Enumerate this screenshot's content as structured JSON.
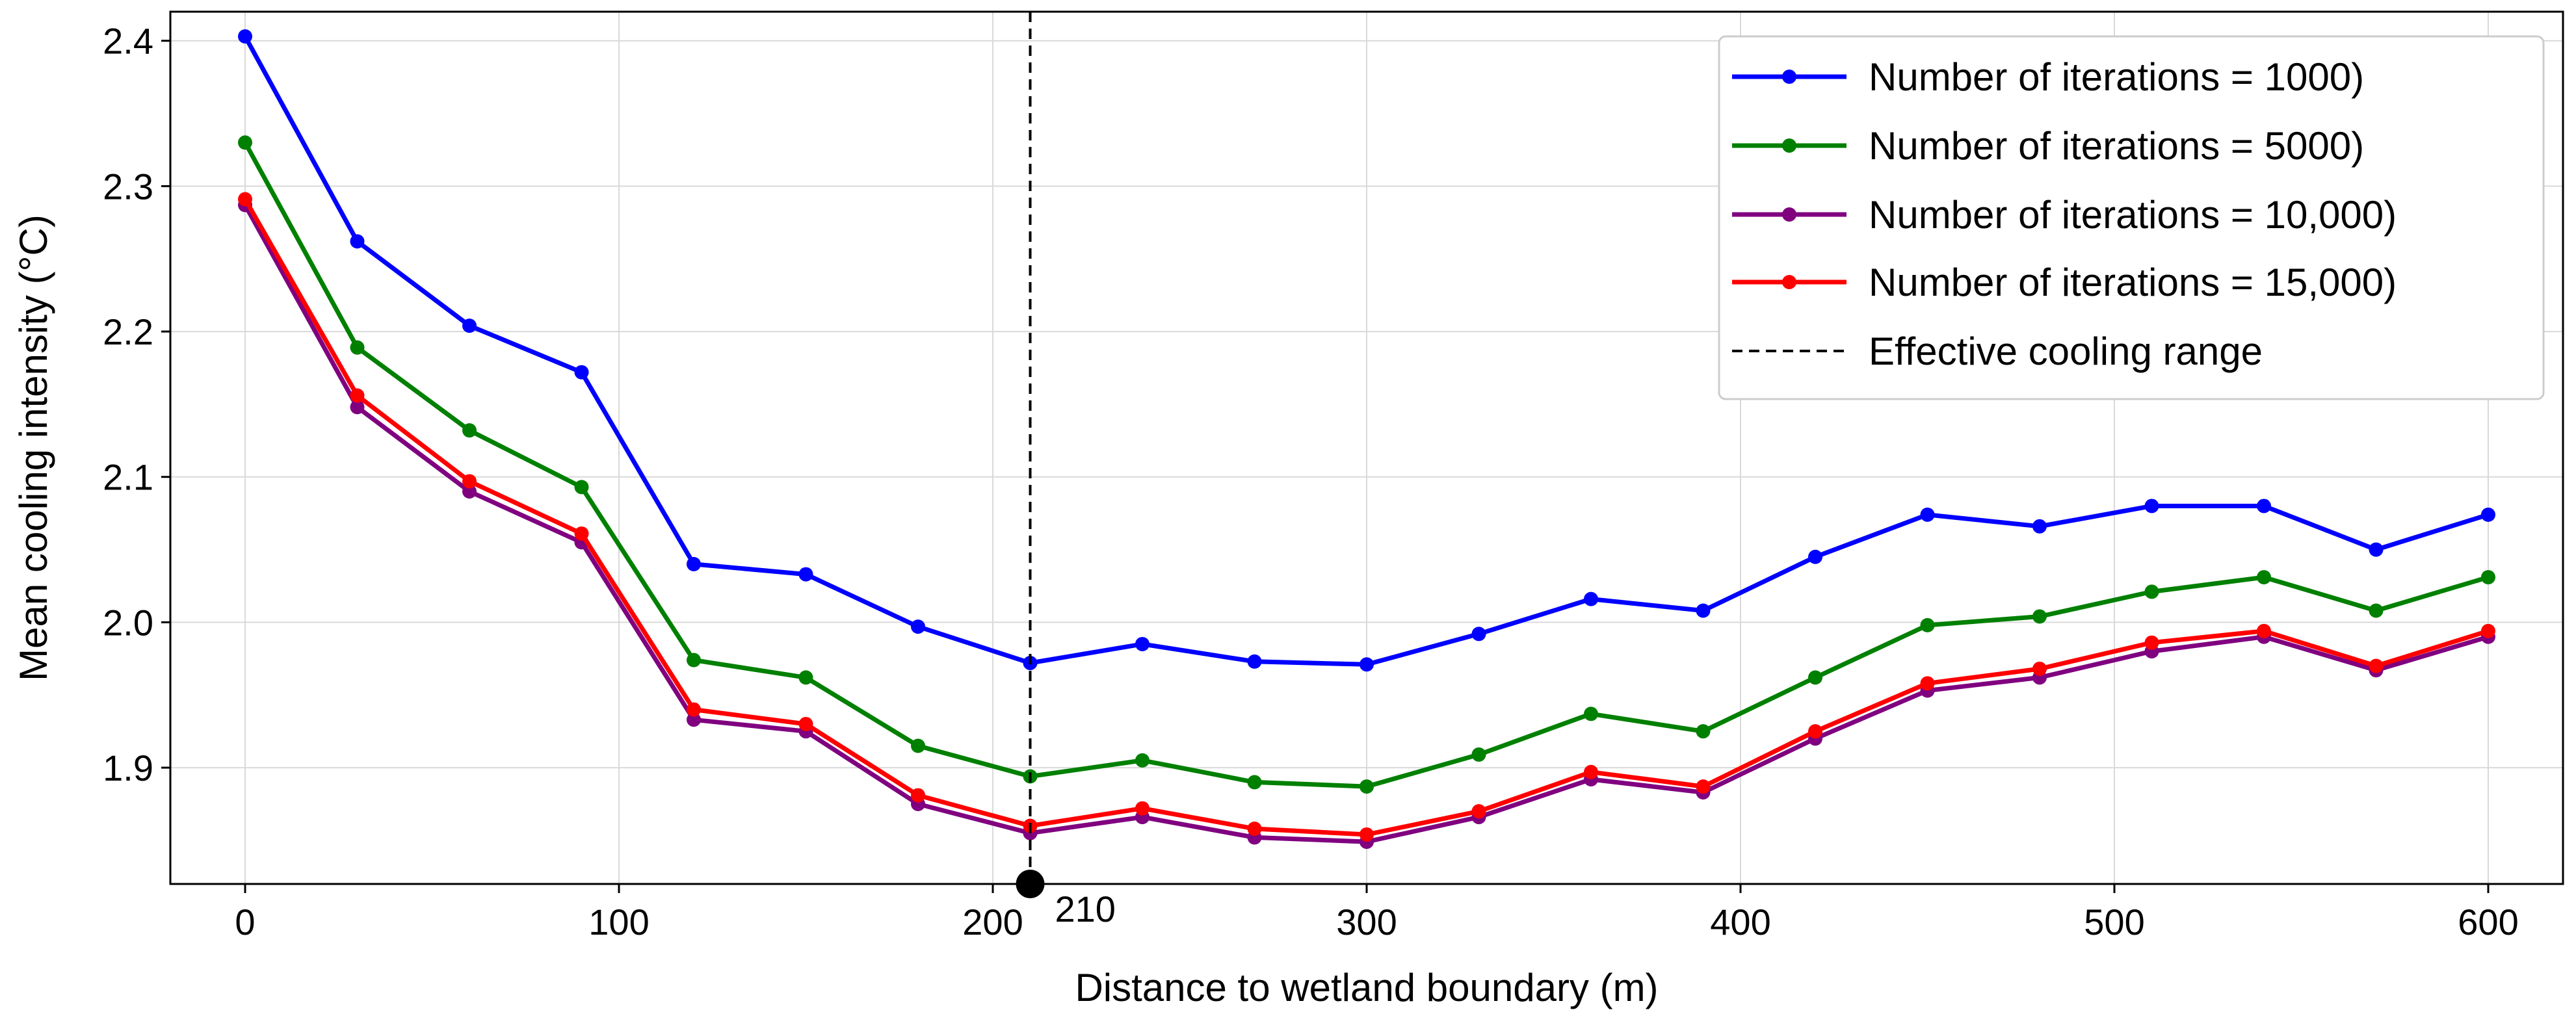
{
  "chart_data": {
    "type": "line",
    "title": "",
    "xlabel": "Distance to wetland boundary (m)",
    "ylabel": "Mean cooling intensity (°C)",
    "xlim": [
      -20,
      620
    ],
    "ylim": [
      1.82,
      2.42
    ],
    "xticks": [
      0,
      100,
      200,
      300,
      400,
      500,
      600
    ],
    "yticks": [
      1.9,
      2.0,
      2.1,
      2.2,
      2.3,
      2.4
    ],
    "grid": true,
    "legend_position": "top-right",
    "x": [
      0,
      30,
      60,
      90,
      120,
      150,
      180,
      210,
      240,
      270,
      300,
      330,
      360,
      390,
      420,
      450,
      480,
      510,
      540,
      570,
      600
    ],
    "series": [
      {
        "name": "Number of iterations = 1000)",
        "color": "#0000ff",
        "values": [
          2.403,
          2.262,
          2.204,
          2.172,
          2.04,
          2.033,
          1.997,
          1.972,
          1.985,
          1.973,
          1.971,
          1.992,
          2.016,
          2.008,
          2.045,
          2.074,
          2.066,
          2.08,
          2.08,
          2.05,
          2.074
        ]
      },
      {
        "name": "Number of iterations = 5000)",
        "color": "#008000",
        "values": [
          2.33,
          2.189,
          2.132,
          2.093,
          1.974,
          1.962,
          1.915,
          1.894,
          1.905,
          1.89,
          1.887,
          1.909,
          1.937,
          1.925,
          1.962,
          1.998,
          2.004,
          2.021,
          2.031,
          2.008,
          2.031
        ]
      },
      {
        "name": "Number of iterations = 10,000)",
        "color": "#800080",
        "values": [
          2.287,
          2.148,
          2.09,
          2.055,
          1.933,
          1.925,
          1.875,
          1.855,
          1.866,
          1.852,
          1.849,
          1.866,
          1.892,
          1.883,
          1.92,
          1.953,
          1.962,
          1.98,
          1.99,
          1.967,
          1.99
        ]
      },
      {
        "name": "Number of iterations = 15,000)",
        "color": "#ff0000",
        "values": [
          2.291,
          2.156,
          2.097,
          2.061,
          1.94,
          1.93,
          1.881,
          1.86,
          1.872,
          1.858,
          1.854,
          1.87,
          1.897,
          1.887,
          1.925,
          1.958,
          1.968,
          1.986,
          1.994,
          1.97,
          1.994
        ]
      }
    ],
    "reference_line": {
      "x": 210,
      "label": "Effective cooling range",
      "style": "dashed",
      "color": "#000000"
    },
    "highlight_point": {
      "x": 210,
      "label": "210"
    }
  }
}
